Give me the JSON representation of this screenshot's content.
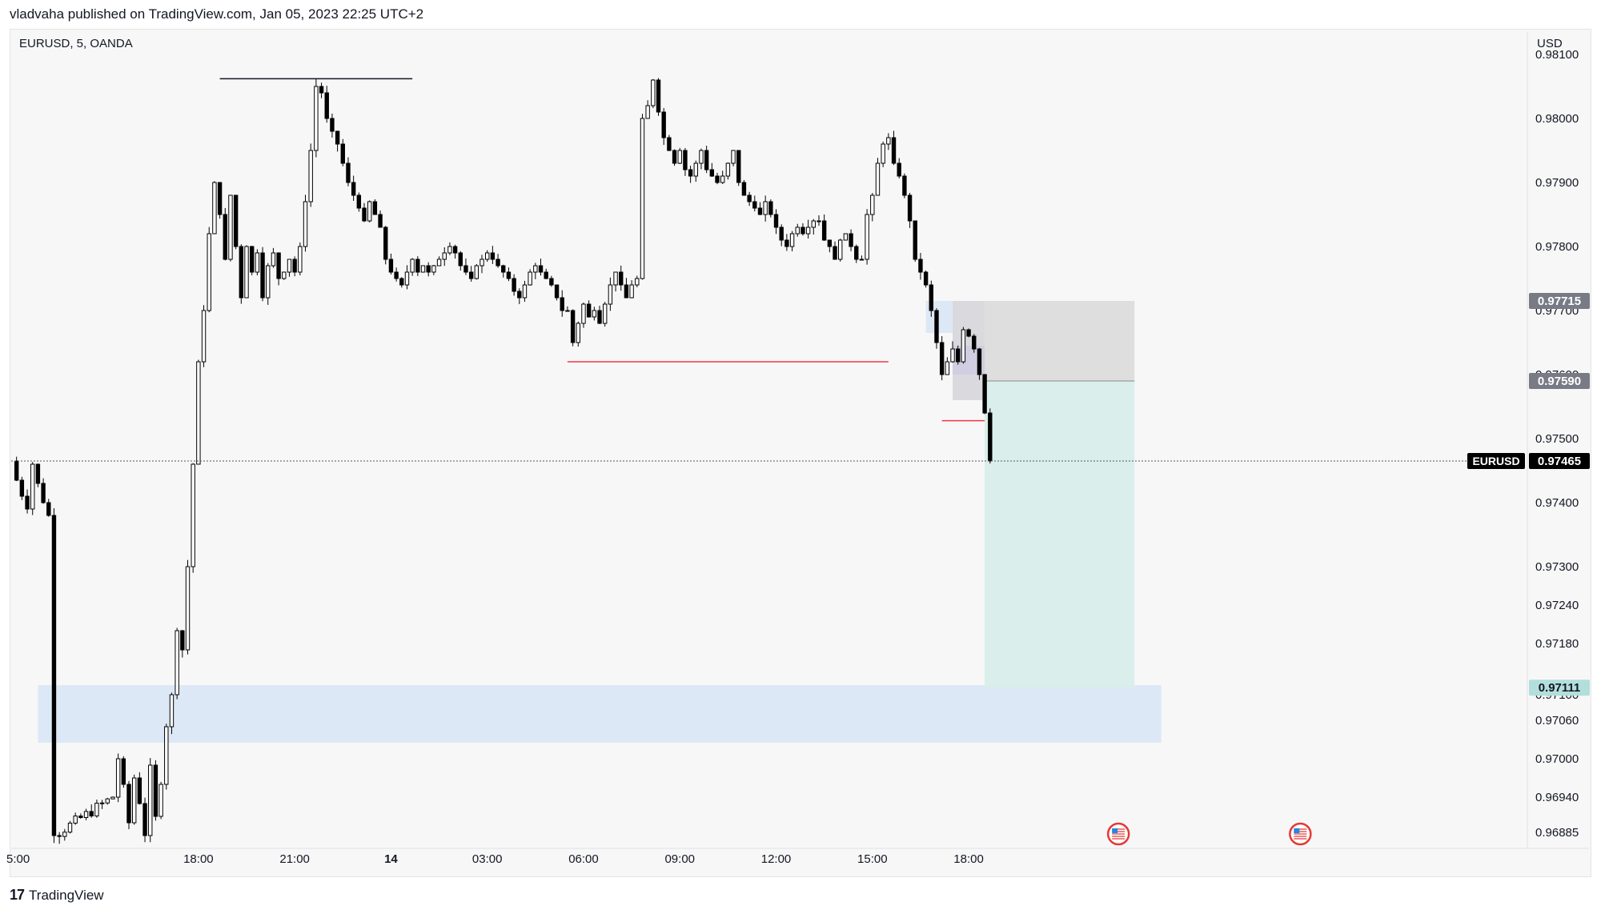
{
  "header": {
    "published": "vladvaha published on TradingView.com, Jan 05, 2023 22:25 UTC+2"
  },
  "chart_header": {
    "symbol_line": "EURUSD, 5, OANDA",
    "currency": "USD"
  },
  "brand": {
    "logo": "17",
    "name": "TradingView"
  },
  "chart_data": {
    "type": "candlestick",
    "symbol": "EURUSD",
    "interval": "5",
    "source": "OANDA",
    "y_axis": {
      "ticks": [
        "0.98000",
        "0.97900",
        "0.97800",
        "0.97500",
        "0.97400",
        "0.97300",
        "0.97240",
        "0.97180",
        "0.97060",
        "0.97000",
        "0.96940",
        "0.96885"
      ],
      "partially_hidden_ticks": [
        "0.98100",
        "0.97700",
        "0.97600",
        "0.97100"
      ],
      "range": [
        0.9686,
        0.9811
      ]
    },
    "x_axis": {
      "ticks": [
        "5:00",
        "18:00",
        "21:00",
        "14",
        "03:00",
        "06:00",
        "09:00",
        "12:00",
        "15:00",
        "18:00"
      ],
      "range_minutes": [
        -175,
        1240
      ]
    },
    "price_labels": [
      {
        "name": "stop",
        "text": "0.97715",
        "value": 0.97715,
        "color": "#787b86"
      },
      {
        "name": "entry",
        "text": "0.97590",
        "value": 0.9759,
        "color": "#787b86"
      },
      {
        "name": "last",
        "symbol": "EURUSD",
        "text": "0.97465",
        "value": 0.97465,
        "color": "#000000"
      },
      {
        "name": "target",
        "text": "0.97111",
        "value": 0.97111,
        "color": "#b2dfdb"
      }
    ],
    "last_price": 0.97465,
    "price_path": [
      [
        -175,
        0.97465
      ],
      [
        -170,
        0.97435
      ],
      [
        -165,
        0.9741
      ],
      [
        -160,
        0.9739
      ],
      [
        -155,
        0.9746
      ],
      [
        -150,
        0.9743
      ],
      [
        -145,
        0.974
      ],
      [
        -140,
        0.9738
      ],
      [
        -135,
        0.9688
      ],
      [
        -80,
        0.9694
      ],
      [
        -75,
        0.97
      ],
      [
        -70,
        0.9696
      ],
      [
        -65,
        0.969
      ],
      [
        -60,
        0.9697
      ],
      [
        -55,
        0.9693
      ],
      [
        -50,
        0.9688
      ],
      [
        -45,
        0.9699
      ],
      [
        -40,
        0.9691
      ],
      [
        -35,
        0.9696
      ],
      [
        -30,
        0.9705
      ],
      [
        -25,
        0.971
      ],
      [
        -20,
        0.972
      ],
      [
        -15,
        0.9717
      ],
      [
        -10,
        0.973
      ],
      [
        -5,
        0.9746
      ],
      [
        0,
        0.9762
      ],
      [
        5,
        0.977
      ],
      [
        10,
        0.9782
      ],
      [
        15,
        0.979
      ],
      [
        20,
        0.9785
      ],
      [
        25,
        0.9778
      ],
      [
        30,
        0.9788
      ],
      [
        35,
        0.978
      ],
      [
        40,
        0.9772
      ],
      [
        45,
        0.978
      ],
      [
        50,
        0.9776
      ],
      [
        55,
        0.9779
      ],
      [
        60,
        0.9772
      ],
      [
        65,
        0.9777
      ],
      [
        70,
        0.9779
      ],
      [
        75,
        0.9775
      ],
      [
        80,
        0.9776
      ],
      [
        85,
        0.9778
      ],
      [
        90,
        0.9776
      ],
      [
        95,
        0.978
      ],
      [
        100,
        0.9787
      ],
      [
        105,
        0.9795
      ],
      [
        110,
        0.9805
      ],
      [
        115,
        0.9804
      ],
      [
        120,
        0.98
      ],
      [
        125,
        0.9798
      ],
      [
        130,
        0.9796
      ],
      [
        135,
        0.9793
      ],
      [
        140,
        0.979
      ],
      [
        145,
        0.9788
      ],
      [
        150,
        0.9786
      ],
      [
        155,
        0.9784
      ],
      [
        160,
        0.9787
      ],
      [
        165,
        0.9785
      ],
      [
        170,
        0.9783
      ],
      [
        175,
        0.9778
      ],
      [
        180,
        0.9776
      ],
      [
        185,
        0.9775
      ],
      [
        190,
        0.9774
      ],
      [
        195,
        0.9776
      ],
      [
        200,
        0.9778
      ],
      [
        205,
        0.9776
      ],
      [
        210,
        0.9777
      ],
      [
        215,
        0.9776
      ],
      [
        220,
        0.9777
      ],
      [
        225,
        0.9778
      ],
      [
        230,
        0.9779
      ],
      [
        235,
        0.978
      ],
      [
        240,
        0.9779
      ],
      [
        245,
        0.9777
      ],
      [
        250,
        0.9776
      ],
      [
        255,
        0.9775
      ],
      [
        260,
        0.9777
      ],
      [
        265,
        0.9778
      ],
      [
        270,
        0.9779
      ],
      [
        275,
        0.9778
      ],
      [
        280,
        0.9777
      ],
      [
        285,
        0.9776
      ],
      [
        290,
        0.9775
      ],
      [
        295,
        0.9773
      ],
      [
        300,
        0.9772
      ],
      [
        305,
        0.9774
      ],
      [
        310,
        0.9776
      ],
      [
        315,
        0.9777
      ],
      [
        320,
        0.9776
      ],
      [
        325,
        0.9775
      ],
      [
        330,
        0.9774
      ],
      [
        335,
        0.9772
      ],
      [
        340,
        0.977
      ],
      [
        345,
        0.977
      ],
      [
        350,
        0.9765
      ],
      [
        355,
        0.9768
      ],
      [
        360,
        0.9771
      ],
      [
        365,
        0.9769
      ],
      [
        370,
        0.977
      ],
      [
        375,
        0.9768
      ],
      [
        380,
        0.9771
      ],
      [
        385,
        0.9774
      ],
      [
        390,
        0.9776
      ],
      [
        395,
        0.9774
      ],
      [
        400,
        0.9772
      ],
      [
        405,
        0.9774
      ],
      [
        410,
        0.9775
      ],
      [
        415,
        0.98
      ],
      [
        420,
        0.9802
      ],
      [
        425,
        0.9806
      ],
      [
        430,
        0.9801
      ],
      [
        435,
        0.9797
      ],
      [
        440,
        0.9795
      ],
      [
        445,
        0.9793
      ],
      [
        450,
        0.9795
      ],
      [
        455,
        0.9792
      ],
      [
        460,
        0.9791
      ],
      [
        465,
        0.9793
      ],
      [
        470,
        0.9795
      ],
      [
        475,
        0.9792
      ],
      [
        480,
        0.9791
      ],
      [
        485,
        0.979
      ],
      [
        490,
        0.9791
      ],
      [
        495,
        0.9793
      ],
      [
        500,
        0.9795
      ],
      [
        505,
        0.979
      ],
      [
        510,
        0.9788
      ],
      [
        515,
        0.9787
      ],
      [
        520,
        0.9786
      ],
      [
        525,
        0.9785
      ],
      [
        530,
        0.9787
      ],
      [
        535,
        0.9785
      ],
      [
        540,
        0.9783
      ],
      [
        545,
        0.9781
      ],
      [
        550,
        0.978
      ],
      [
        555,
        0.9782
      ],
      [
        560,
        0.9783
      ],
      [
        565,
        0.9782
      ],
      [
        570,
        0.9783
      ],
      [
        575,
        0.9784
      ],
      [
        580,
        0.9784
      ],
      [
        585,
        0.9781
      ],
      [
        590,
        0.978
      ],
      [
        595,
        0.9778
      ],
      [
        600,
        0.9781
      ],
      [
        605,
        0.9782
      ],
      [
        610,
        0.978
      ],
      [
        615,
        0.9778
      ],
      [
        620,
        0.9778
      ],
      [
        625,
        0.9785
      ],
      [
        630,
        0.9788
      ],
      [
        635,
        0.9793
      ],
      [
        640,
        0.9796
      ],
      [
        645,
        0.9797
      ],
      [
        650,
        0.9793
      ],
      [
        655,
        0.9791
      ],
      [
        660,
        0.9788
      ],
      [
        665,
        0.9784
      ],
      [
        670,
        0.9778
      ],
      [
        675,
        0.9776
      ],
      [
        680,
        0.9774
      ],
      [
        685,
        0.977
      ],
      [
        690,
        0.9765
      ],
      [
        695,
        0.976
      ],
      [
        700,
        0.9762
      ],
      [
        705,
        0.9764
      ],
      [
        710,
        0.9762
      ],
      [
        715,
        0.9767
      ],
      [
        720,
        0.9766
      ],
      [
        725,
        0.9764
      ],
      [
        730,
        0.976
      ],
      [
        735,
        0.9754
      ],
      [
        740,
        0.97465
      ]
    ],
    "lines": [
      {
        "name": "high-line",
        "from": [
          20,
          0.98062
        ],
        "to": [
          200,
          0.98062
        ],
        "color": "#131722"
      },
      {
        "name": "low-line",
        "from": [
          345,
          0.9762
        ],
        "to": [
          645,
          0.9762
        ],
        "color": "#f23645"
      },
      {
        "name": "local-low-line",
        "from": [
          695,
          0.97528
        ],
        "to": [
          735,
          0.97528
        ],
        "color": "#f23645"
      }
    ],
    "zones": [
      {
        "name": "demand-zone",
        "x": [
          -150,
          900
        ],
        "y": [
          0.97025,
          0.97115
        ],
        "color": "#dbe7f6"
      },
      {
        "name": "supply-zone",
        "x": [
          680,
          710
        ],
        "y": [
          0.97665,
          0.97715
        ],
        "color": "#dbe7f6"
      },
      {
        "name": "supply-zone-overlap",
        "x": [
          705,
          735
        ],
        "y": [
          0.9756,
          0.97715
        ],
        "color": "#d8d8dc"
      },
      {
        "name": "risk-zone",
        "x": [
          735,
          875
        ],
        "y": [
          0.9759,
          0.97715
        ],
        "color": "#dcdcdc"
      },
      {
        "name": "reward-zone",
        "x": [
          735,
          875
        ],
        "y": [
          0.97111,
          0.9759
        ],
        "color": "#d8eeea"
      },
      {
        "name": "overlap-purple",
        "x": [
          705,
          735
        ],
        "y": [
          0.976,
          0.97645
        ],
        "color": "#d2cde0"
      }
    ],
    "event_icons": [
      {
        "name": "us-event-flag-1",
        "x": 860
      },
      {
        "name": "us-event-flag-2",
        "x": 1030
      }
    ]
  }
}
